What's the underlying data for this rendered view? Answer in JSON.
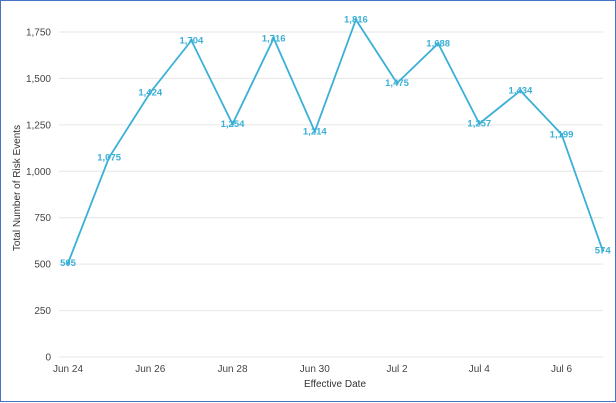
{
  "chart_data": {
    "type": "line",
    "title": "",
    "xlabel": "Effective Date",
    "ylabel": "Total Number of Risk Events",
    "x": [
      "Jun 24",
      "Jun 25",
      "Jun 26",
      "Jun 27",
      "Jun 28",
      "Jun 29",
      "Jun 30",
      "Jul 1",
      "Jul 2",
      "Jul 3",
      "Jul 4",
      "Jul 5",
      "Jul 6",
      "Jul 7"
    ],
    "values": [
      505,
      1075,
      1424,
      1704,
      1254,
      1716,
      1214,
      1816,
      1475,
      1688,
      1257,
      1434,
      1199,
      574
    ],
    "data_labels": [
      "505",
      "1,075",
      "1,424",
      "1,704",
      "1,254",
      "1,716",
      "1,214",
      "1,816",
      "1,475",
      "1,688",
      "1,257",
      "1,434",
      "1,199",
      "574"
    ],
    "x_tick_labels": [
      "Jun 24",
      "Jun 26",
      "Jun 28",
      "Jun 30",
      "Jul 2",
      "Jul 4",
      "Jul 6"
    ],
    "y_tick_labels": [
      "0",
      "250",
      "500",
      "750",
      "1,000",
      "1,250",
      "1,500",
      "1,750"
    ],
    "y_ticks": [
      0,
      250,
      500,
      750,
      1000,
      1250,
      1500,
      1750
    ],
    "ylim": [
      0,
      1820
    ],
    "grid": true,
    "legend": "none",
    "colors": {
      "series": "#3ab0d6",
      "frame": "#4472c4",
      "grid": "#e6e6e6"
    }
  }
}
